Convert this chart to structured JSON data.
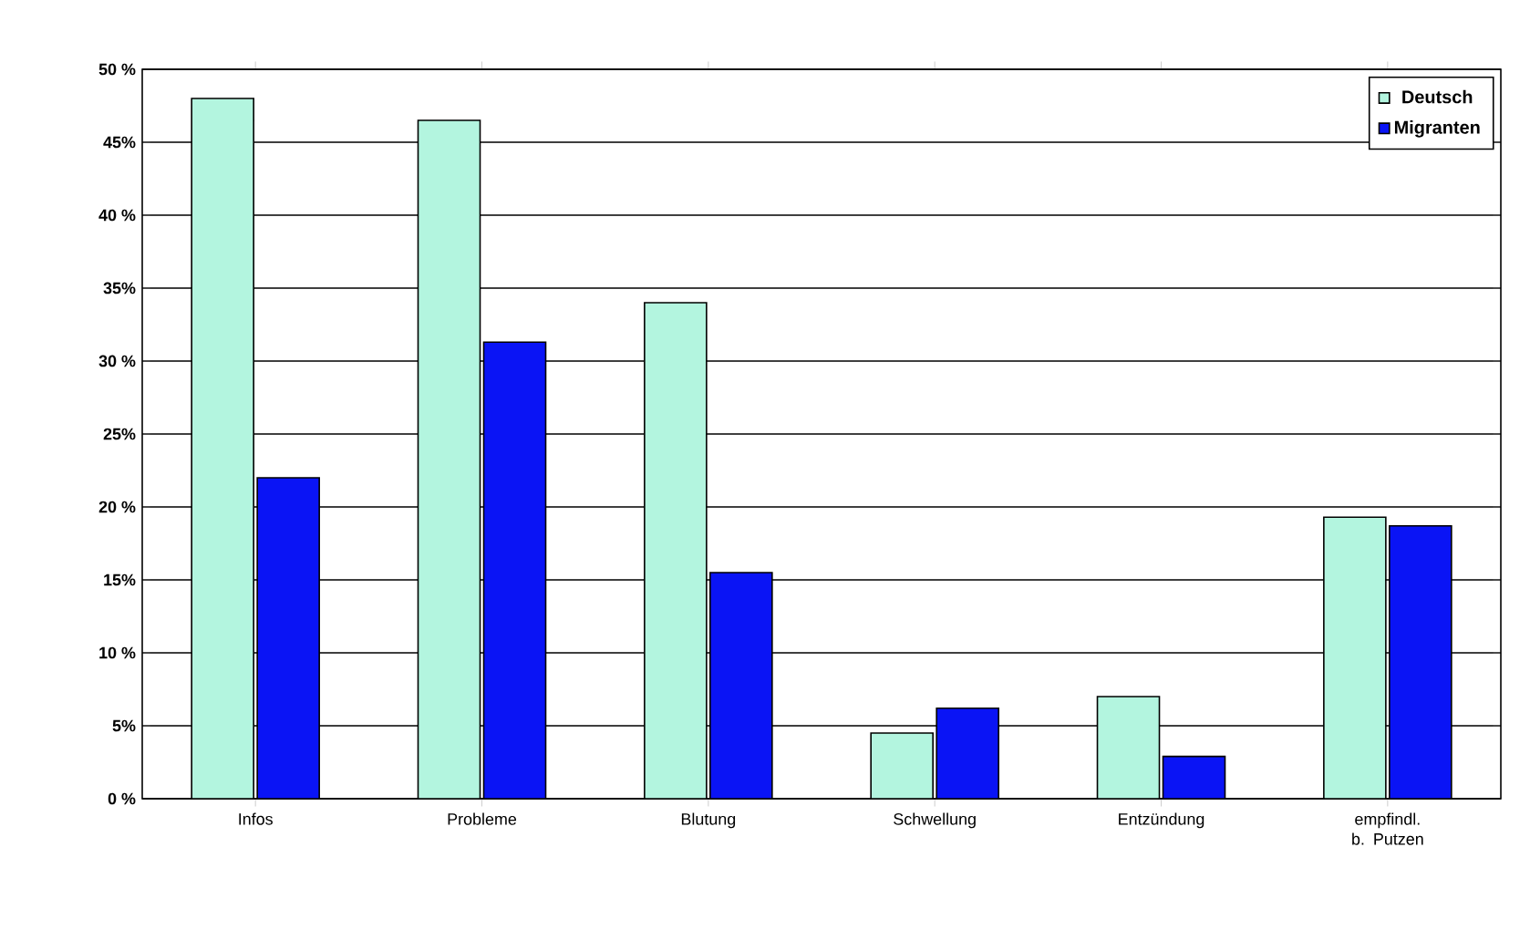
{
  "chart_data": {
    "type": "bar",
    "categories": [
      "Infos",
      "Probleme",
      "Blutung",
      "Schwellung",
      "Entzündung",
      "empfindl. b. Putzen"
    ],
    "series": [
      {
        "name": "Deutsch",
        "color": "#b3f5df",
        "values": [
          48,
          46.5,
          34,
          4.5,
          7,
          19.3
        ]
      },
      {
        "name": "Migranten",
        "color": "#0a14f5",
        "values": [
          22,
          31.3,
          15.5,
          6.2,
          2.9,
          18.7
        ]
      }
    ],
    "ylim": [
      0,
      50
    ],
    "yticks": [
      {
        "value": 0,
        "label": "0 %"
      },
      {
        "value": 5,
        "label": "5%"
      },
      {
        "value": 10,
        "label": "10 %"
      },
      {
        "value": 15,
        "label": "15%"
      },
      {
        "value": 20,
        "label": "20 %"
      },
      {
        "value": 25,
        "label": "25%"
      },
      {
        "value": 30,
        "label": "30 %"
      },
      {
        "value": 35,
        "label": "35%"
      },
      {
        "value": 40,
        "label": "40 %"
      },
      {
        "value": 45,
        "label": "45%"
      },
      {
        "value": 50,
        "label": "50 %"
      }
    ],
    "grid": "y",
    "legend": "top right"
  }
}
